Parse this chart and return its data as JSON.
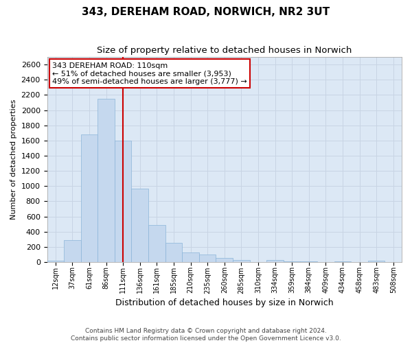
{
  "title": "343, DEREHAM ROAD, NORWICH, NR2 3UT",
  "subtitle": "Size of property relative to detached houses in Norwich",
  "xlabel": "Distribution of detached houses by size in Norwich",
  "ylabel": "Number of detached properties",
  "footer_line1": "Contains HM Land Registry data © Crown copyright and database right 2024.",
  "footer_line2": "Contains public sector information licensed under the Open Government Licence v3.0.",
  "bin_labels": [
    "12sqm",
    "37sqm",
    "61sqm",
    "86sqm",
    "111sqm",
    "136sqm",
    "161sqm",
    "185sqm",
    "210sqm",
    "235sqm",
    "260sqm",
    "285sqm",
    "310sqm",
    "334sqm",
    "359sqm",
    "384sqm",
    "409sqm",
    "434sqm",
    "458sqm",
    "483sqm",
    "508sqm"
  ],
  "bar_values": [
    20,
    290,
    1680,
    2150,
    1600,
    970,
    490,
    250,
    125,
    100,
    55,
    30,
    0,
    25,
    5,
    5,
    0,
    5,
    0,
    20,
    0
  ],
  "bar_color": "#c5d8ee",
  "bar_edge_color": "#8ab4d8",
  "vline_x_idx": 4,
  "vline_color": "#cc0000",
  "annotation_line1": "343 DEREHAM ROAD: 110sqm",
  "annotation_line2": "← 51% of detached houses are smaller (3,953)",
  "annotation_line3": "49% of semi-detached houses are larger (3,777) →",
  "annotation_box_facecolor": "#ffffff",
  "annotation_box_edgecolor": "#cc0000",
  "ylim": [
    0,
    2700
  ],
  "yticks": [
    0,
    200,
    400,
    600,
    800,
    1000,
    1200,
    1400,
    1600,
    1800,
    2000,
    2200,
    2400,
    2600
  ],
  "grid_color": "#c8d4e4",
  "plot_bg_color": "#dce8f5",
  "fig_bg_color": "#ffffff"
}
